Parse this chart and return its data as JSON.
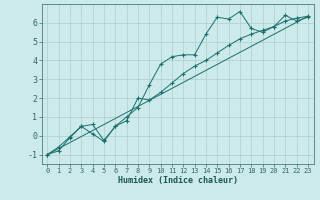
{
  "xlabel": "Humidex (Indice chaleur)",
  "background_color": "#cdeaea",
  "grid_color": "#b0cccc",
  "line_color": "#1a6e6e",
  "xlim": [
    -0.5,
    23.5
  ],
  "ylim": [
    -1.5,
    7.0
  ],
  "yticks": [
    -1,
    0,
    1,
    2,
    3,
    4,
    5,
    6
  ],
  "xticks": [
    0,
    1,
    2,
    3,
    4,
    5,
    6,
    7,
    8,
    9,
    10,
    11,
    12,
    13,
    14,
    15,
    16,
    17,
    18,
    19,
    20,
    21,
    22,
    23
  ],
  "series1_x": [
    0,
    1,
    2,
    3,
    4,
    5,
    6,
    7,
    8,
    9,
    10,
    11,
    12,
    13,
    14,
    15,
    16,
    17,
    18,
    19,
    20,
    21,
    22,
    23
  ],
  "series1_y": [
    -1.0,
    -0.8,
    -0.1,
    0.5,
    0.6,
    -0.25,
    0.5,
    1.0,
    1.5,
    2.7,
    3.8,
    4.2,
    4.3,
    4.3,
    5.4,
    6.3,
    6.2,
    6.6,
    5.7,
    5.5,
    5.8,
    6.4,
    6.1,
    6.3
  ],
  "series2_x": [
    0,
    1,
    2,
    3,
    4,
    5,
    6,
    7,
    8,
    9,
    10,
    11,
    12,
    13,
    14,
    15,
    16,
    17,
    18,
    19,
    20,
    21,
    22,
    23
  ],
  "series2_y": [
    -1.0,
    -0.6,
    -0.05,
    0.5,
    0.1,
    -0.3,
    0.5,
    0.8,
    2.0,
    1.9,
    2.3,
    2.8,
    3.3,
    3.7,
    4.0,
    4.4,
    4.8,
    5.15,
    5.4,
    5.6,
    5.8,
    6.1,
    6.25,
    6.35
  ],
  "series3_x": [
    0,
    23
  ],
  "series3_y": [
    -1.0,
    6.35
  ]
}
